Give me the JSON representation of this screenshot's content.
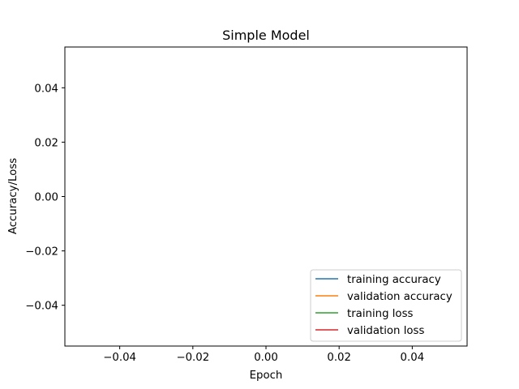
{
  "chart_data": {
    "type": "line",
    "title": "Simple Model",
    "xlabel": "Epoch",
    "ylabel": "Accuracy/Loss",
    "xlim": [
      -0.055,
      0.055
    ],
    "ylim": [
      -0.055,
      0.055
    ],
    "x_ticks": [
      "−0.04",
      "−0.02",
      "0.00",
      "0.02",
      "0.04"
    ],
    "y_ticks": [
      "−0.04",
      "−0.02",
      "0.00",
      "0.02",
      "0.04"
    ],
    "x_tick_values": [
      -0.04,
      -0.02,
      0.0,
      0.02,
      0.04
    ],
    "y_tick_values": [
      -0.04,
      -0.02,
      0.0,
      0.02,
      0.04
    ],
    "grid": false,
    "legend_position": "lower-right",
    "series": [
      {
        "name": "training accuracy",
        "color": "#1f77b4",
        "x": [],
        "y": []
      },
      {
        "name": "validation accuracy",
        "color": "#ff7f0e",
        "x": [],
        "y": []
      },
      {
        "name": "training loss",
        "color": "#2ca02c",
        "x": [],
        "y": []
      },
      {
        "name": "validation loss",
        "color": "#d62728",
        "x": [],
        "y": []
      }
    ]
  }
}
